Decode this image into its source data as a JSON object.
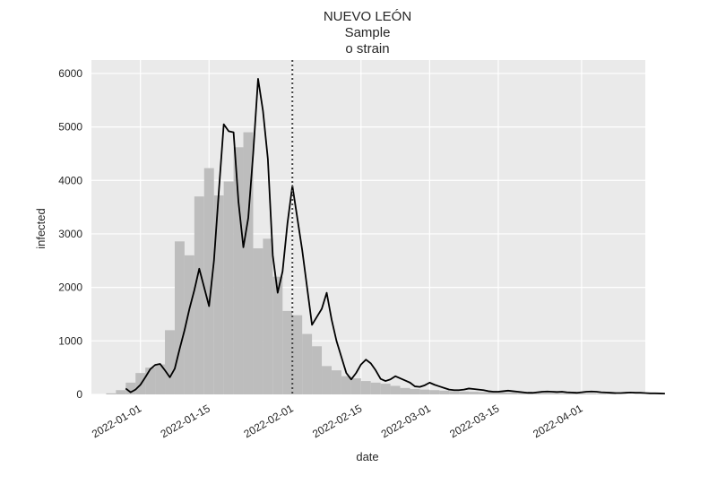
{
  "chart_data": {
    "type": "bar",
    "title": [
      "NUEVO LEÓN",
      "Sample",
      "o strain"
    ],
    "xlabel": "date",
    "ylabel": "infected",
    "x_start": "2021-12-26",
    "x_tick_labels": [
      "2022-01-01",
      "2022-01-15",
      "2022-02-01",
      "2022-02-15",
      "2022-03-01",
      "2022-03-15",
      "2022-04-01"
    ],
    "x_tick_dates": [
      "2022-01-01",
      "2022-01-15",
      "2022-02-01",
      "2022-02-15",
      "2022-03-01",
      "2022-03-15",
      "2022-04-01"
    ],
    "y_ticks": [
      0,
      1000,
      2000,
      3000,
      4000,
      5000,
      6000
    ],
    "ylim": [
      0,
      6250
    ],
    "xlim": [
      "2021-12-22",
      "2022-04-14"
    ],
    "vline_date": "2022-02-01",
    "grid": true,
    "colors": {
      "plot_background": "#eaeaea",
      "grid": "#ffffff",
      "bars": "#bdbdbd",
      "line": "#000000",
      "vline": "#444444"
    },
    "series": [
      {
        "type": "bar",
        "start_date": "2021-12-25",
        "bin_days": 2,
        "values": [
          20,
          80,
          220,
          400,
          500,
          560,
          1200,
          2860,
          2600,
          3700,
          4230,
          3720,
          3980,
          4620,
          4900,
          2730,
          2910,
          2200,
          1560,
          1480,
          1130,
          900,
          530,
          450,
          340,
          300,
          250,
          220,
          200,
          160,
          120,
          100,
          90,
          80,
          70,
          60,
          55,
          50,
          45,
          40,
          40,
          38,
          35,
          30,
          30,
          28,
          25,
          22,
          20,
          18,
          15,
          12
        ]
      },
      {
        "type": "line",
        "start_date": "2021-12-29",
        "step_days": 1,
        "values": [
          110,
          40,
          90,
          180,
          320,
          470,
          550,
          570,
          450,
          320,
          480,
          850,
          1200,
          1600,
          1950,
          2350,
          2000,
          1650,
          2500,
          3800,
          5050,
          4920,
          4900,
          3600,
          2750,
          3300,
          4500,
          5900,
          5300,
          4400,
          2600,
          1900,
          2300,
          3200,
          3900,
          3300,
          2700,
          2000,
          1300,
          1450,
          1600,
          1900,
          1400,
          1000,
          700,
          400,
          280,
          400,
          560,
          650,
          580,
          450,
          290,
          250,
          280,
          340,
          300,
          260,
          220,
          150,
          140,
          170,
          220,
          180,
          150,
          120,
          90,
          80,
          80,
          90,
          110,
          100,
          90,
          80,
          60,
          50,
          50,
          60,
          70,
          60,
          50,
          40,
          30,
          30,
          40,
          50,
          55,
          50,
          45,
          50,
          40,
          35,
          30,
          40,
          50,
          55,
          50,
          40,
          35,
          30,
          25,
          25,
          30,
          35,
          30,
          30,
          25,
          20,
          20,
          18,
          15
        ]
      }
    ]
  }
}
